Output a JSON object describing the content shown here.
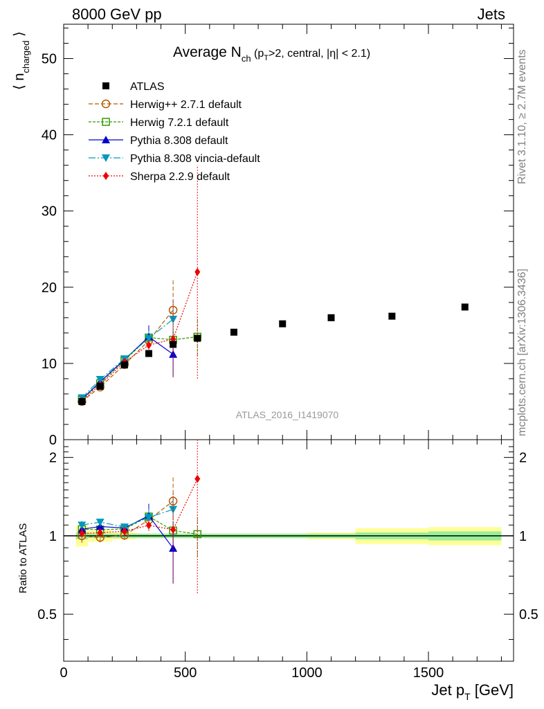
{
  "header": {
    "energy_label": "8000 GeV pp",
    "category_label": "Jets"
  },
  "side_labels": {
    "rivet": "Rivet 3.1.10, ≥ 2.7M events",
    "mcplots": "mcplots.cern.ch [arXiv:1306.3436]"
  },
  "chart_data": {
    "type": "scatter",
    "title": "Average N_ch (p_T>2, central, |η| < 2.1)",
    "title_parts": {
      "main": "Average N",
      "main_sub": "ch",
      "cond1": "(p",
      "cond_sub": "T",
      "cond2": ">2, central, |η| < 2.1)"
    },
    "analysis_id": "ATLAS_2016_I1419070",
    "ylabel": {
      "open": "⟨ n",
      "sub": "charged",
      "close": "⟩"
    },
    "ratio_ylabel": "Ratio to ATLAS",
    "xlabel": {
      "main": "Jet p",
      "sub": "T",
      "unit": " [GeV]"
    },
    "xlim": [
      0,
      1850
    ],
    "ylim": [
      0,
      54.5
    ],
    "ratio_ylim": [
      0.33,
      2.34
    ],
    "x_ticks": [
      0,
      500,
      1000,
      1500
    ],
    "y_ticks": [
      0,
      10,
      20,
      30,
      40,
      50
    ],
    "ratio_ticks": [
      0.5,
      1,
      2
    ],
    "legend_position": "top-left",
    "data": {
      "name": "ATLAS",
      "x": [
        75,
        150,
        250,
        350,
        450,
        550,
        700,
        900,
        1100,
        1350,
        1650
      ],
      "xerr": [
        25,
        50,
        50,
        50,
        50,
        50,
        100,
        100,
        100,
        150,
        150
      ],
      "y": [
        5.0,
        7.0,
        9.8,
        11.3,
        12.5,
        13.3,
        14.1,
        15.2,
        16.0,
        16.2,
        17.4
      ],
      "band_stat": [
        0.03,
        0.02,
        0.02,
        0.02,
        0.02,
        0.02,
        0.02,
        0.02,
        0.02,
        0.03,
        0.04
      ],
      "band_total": [
        0.09,
        0.05,
        0.03,
        0.02,
        0.02,
        0.02,
        0.02,
        0.02,
        0.03,
        0.07,
        0.08
      ]
    },
    "series": [
      {
        "name": "Herwig++ 2.7.1 default",
        "color": "#b35900",
        "marker": "open-circle",
        "dash": "6,3",
        "x": [
          75,
          150,
          250,
          350,
          450
        ],
        "y": [
          5.0,
          6.9,
          9.85,
          13.0,
          17.0
        ],
        "err": [
          0.3,
          0.3,
          0.4,
          1.0,
          4.0
        ]
      },
      {
        "name": "Herwig 7.2.1 default",
        "color": "#339900",
        "marker": "open-square",
        "dash": "4,2",
        "x": [
          75,
          150,
          250,
          350,
          450,
          550
        ],
        "y": [
          5.3,
          7.4,
          10.4,
          13.4,
          13.1,
          13.5
        ],
        "err": [
          0.3,
          0.3,
          0.4,
          0.8,
          1.6,
          2.5
        ]
      },
      {
        "name": "Pythia 8.308 default",
        "color": "#0000cc",
        "marker": "triangle-up",
        "dash": "",
        "x": [
          75,
          150,
          250,
          350,
          450
        ],
        "y": [
          5.3,
          7.6,
          10.5,
          13.5,
          11.2
        ],
        "err": [
          0.3,
          0.3,
          0.4,
          1.5,
          3.0
        ]
      },
      {
        "name": "Pythia 8.308 vincia-default",
        "color": "#0099bb",
        "marker": "triangle-down",
        "dash": "10,3,2,3",
        "x": [
          75,
          150,
          250,
          350,
          450
        ],
        "y": [
          5.5,
          7.9,
          10.6,
          13.3,
          15.8
        ],
        "err": [
          0.3,
          0.3,
          0.4,
          1.0,
          2.5
        ]
      },
      {
        "name": "Sherpa 2.2.9 default",
        "color": "#ee0000",
        "marker": "diamond",
        "dash": "2,2",
        "x": [
          75,
          150,
          250,
          350,
          450,
          550
        ],
        "y": [
          5.1,
          7.2,
          10.2,
          12.4,
          13.2,
          22.0
        ],
        "err": [
          0.3,
          0.3,
          0.4,
          0.6,
          5.0,
          14.0
        ]
      }
    ]
  }
}
